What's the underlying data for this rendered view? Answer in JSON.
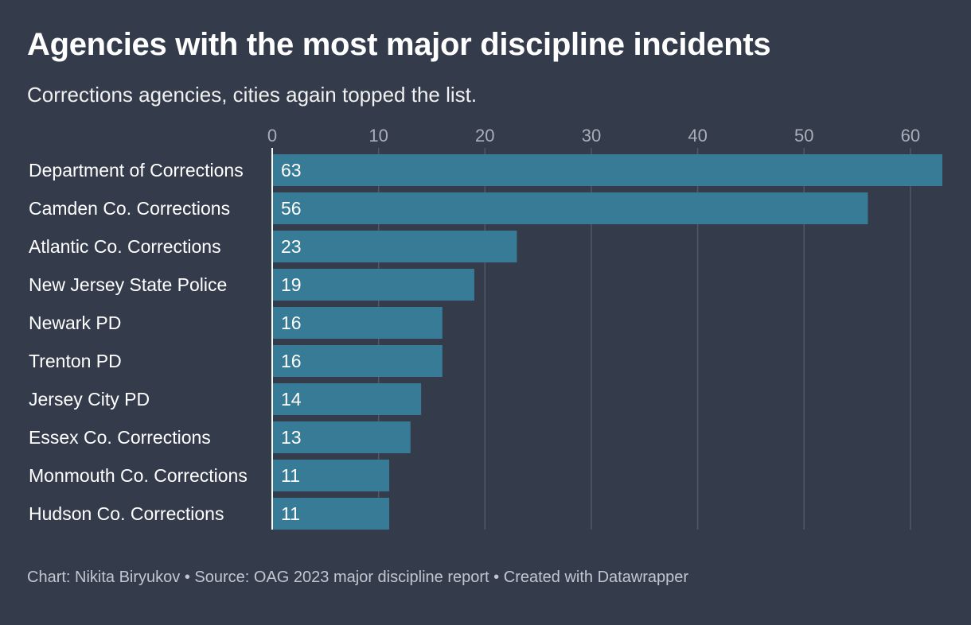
{
  "title": "Agencies with the most major discipline incidents",
  "subtitle": "Corrections agencies, cities again topped the list.",
  "footer": {
    "chart_credit": "Chart: Nikita Biryukov",
    "source": "Source: OAG 2023 major discipline report",
    "created_with": "Created with Datawrapper",
    "separator": "•"
  },
  "colors": {
    "background": "#343c4c",
    "bar": "#377b96",
    "gridline": "#505868",
    "tick_label": "#a9aeb8",
    "text": "#ffffff"
  },
  "chart_data": {
    "type": "bar",
    "orientation": "horizontal",
    "title": "Agencies with the most major discipline incidents",
    "subtitle": "Corrections agencies, cities again topped the list.",
    "categories": [
      "Department of Corrections",
      "Camden Co. Corrections",
      "Atlantic Co. Corrections",
      "New Jersey State Police",
      "Newark PD",
      "Trenton PD",
      "Jersey City PD",
      "Essex Co. Corrections",
      "Monmouth Co. Corrections",
      "Hudson Co. Corrections"
    ],
    "values": [
      63,
      56,
      23,
      19,
      16,
      16,
      14,
      13,
      11,
      11
    ],
    "xlim": [
      0,
      63
    ],
    "xticks": [
      0,
      10,
      20,
      30,
      40,
      50,
      60
    ],
    "grid": true,
    "axis_position": "top",
    "data_labels": "inside-left",
    "legend": "none"
  }
}
